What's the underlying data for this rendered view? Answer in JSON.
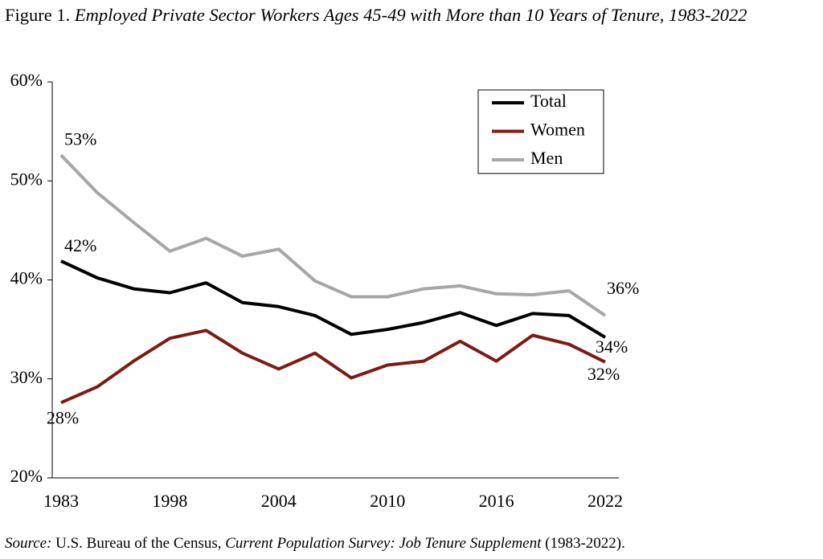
{
  "chart_data": {
    "type": "line",
    "figure_label": "Figure 1.",
    "title": "Employed Private Sector Workers Ages 45-49 with More than 10 Years of Tenure, 1983-2022",
    "categories": [
      "1983",
      null,
      null,
      "1998",
      null,
      null,
      "2004",
      null,
      null,
      "2010",
      null,
      null,
      "2016",
      null,
      null,
      "2022"
    ],
    "series": [
      {
        "name": "Total",
        "color": "#000000",
        "values": [
          41.9,
          40.2,
          39.1,
          38.7,
          39.7,
          37.7,
          37.3,
          36.4,
          34.5,
          35.0,
          35.7,
          36.7,
          35.4,
          36.6,
          36.4,
          34.2
        ],
        "value_labels": [
          "42%",
          null,
          null,
          null,
          null,
          null,
          null,
          null,
          null,
          null,
          null,
          null,
          null,
          null,
          null,
          "34%"
        ]
      },
      {
        "name": "Women",
        "color": "#7b1c14",
        "values": [
          27.6,
          29.2,
          31.8,
          34.1,
          34.9,
          32.6,
          31.0,
          32.6,
          30.1,
          31.4,
          31.8,
          33.8,
          31.8,
          34.4,
          33.5,
          31.7
        ],
        "value_labels": [
          "28%",
          null,
          null,
          null,
          null,
          null,
          null,
          null,
          null,
          null,
          null,
          null,
          null,
          null,
          null,
          "32%"
        ]
      },
      {
        "name": "Men",
        "color": "#a6a6a6",
        "values": [
          52.6,
          48.8,
          45.8,
          42.9,
          44.2,
          42.4,
          43.1,
          39.9,
          38.3,
          38.3,
          39.1,
          39.4,
          38.6,
          38.5,
          38.9,
          36.4
        ],
        "value_labels": [
          "53%",
          null,
          null,
          null,
          null,
          null,
          null,
          null,
          null,
          null,
          null,
          null,
          null,
          null,
          null,
          "36%"
        ]
      }
    ],
    "ylim": [
      20,
      60
    ],
    "yticks": [
      {
        "value": 20,
        "label": "20%"
      },
      {
        "value": 30,
        "label": "30%"
      },
      {
        "value": 40,
        "label": "40%"
      },
      {
        "value": 50,
        "label": "50%"
      },
      {
        "value": 60,
        "label": "60%"
      }
    ],
    "grid": false,
    "legend": "top-right",
    "source": [
      "Source:",
      "U.S. Bureau of the Census,",
      "Current Population Survey: Job Tenure Supplement",
      "(1983-2022)."
    ]
  }
}
